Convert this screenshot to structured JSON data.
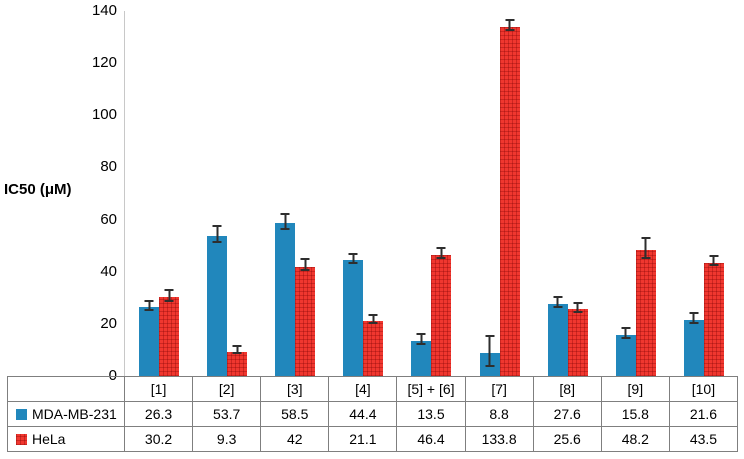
{
  "chart_data": {
    "type": "bar",
    "ylabel": "IC50 (μM)",
    "ylim": [
      0,
      140
    ],
    "yticks": [
      0,
      20,
      40,
      60,
      80,
      100,
      120,
      140
    ],
    "grid": false,
    "legend_position": "table-left",
    "categories": [
      "[1]",
      "[2]",
      "[3]",
      "[4]",
      "[5] + [6]",
      "[7]",
      "[8]",
      "[9]",
      "[10]"
    ],
    "series": [
      {
        "name": "MDA-MB-231",
        "color": "#2187BC",
        "pattern": "solid",
        "values": [
          26.3,
          53.7,
          58.5,
          44.4,
          13.5,
          8.8,
          27.6,
          15.8,
          21.6
        ],
        "errors": [
          1.5,
          2.5,
          2.5,
          1.4,
          1.5,
          5.5,
          1.5,
          1.6,
          1.5
        ]
      },
      {
        "name": "HeLa",
        "color": "#F0372F",
        "pattern": "grid",
        "values": [
          30.2,
          9.3,
          42,
          21.1,
          46.4,
          133.8,
          25.6,
          48.2,
          43.5
        ],
        "errors": [
          1.8,
          1.0,
          1.8,
          1.3,
          1.5,
          1.5,
          1.3,
          3.5,
          1.4
        ]
      }
    ]
  },
  "colors": {
    "axis_line": "#C8C8C8",
    "table_border": "#7F7F7F",
    "error_bar": "#2E2E2E"
  }
}
